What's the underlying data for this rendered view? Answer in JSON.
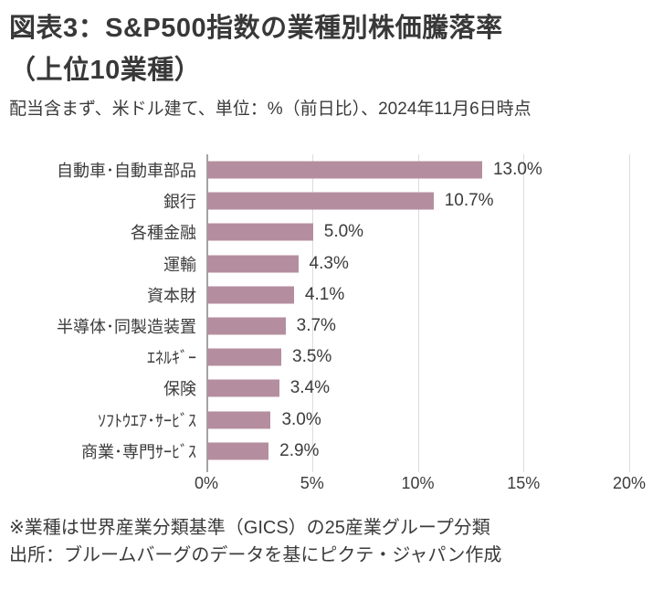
{
  "header": {
    "title_line1": "図表3：S&P500指数の業種別株価騰落率",
    "title_line2": "（上位10業種）",
    "subtitle": "配当含まず、米ドル建て、単位：%（前日比）、2024年11月6日時点"
  },
  "chart_data": {
    "type": "bar",
    "orientation": "horizontal",
    "title": "S&P500指数の業種別株価騰落率（上位10業種）",
    "categories": [
      "自動車･自動車部品",
      "銀行",
      "各種金融",
      "運輸",
      "資本財",
      "半導体･同製造装置",
      "ｴﾈﾙｷﾞｰ",
      "保険",
      "ｿﾌﾄｳｴｱ･ｻｰﾋﾞｽ",
      "商業･専門ｻｰﾋﾞｽ"
    ],
    "values": [
      13.0,
      10.7,
      5.0,
      4.3,
      4.1,
      3.7,
      3.5,
      3.4,
      3.0,
      2.9
    ],
    "value_labels": [
      "13.0%",
      "10.7%",
      "5.0%",
      "4.3%",
      "4.1%",
      "3.7%",
      "3.5%",
      "3.4%",
      "3.0%",
      "2.9%"
    ],
    "xlabel": "",
    "ylabel": "",
    "xlim": [
      0,
      20
    ],
    "x_ticks": [
      "0%",
      "5%",
      "10%",
      "15%",
      "20%"
    ],
    "x_tick_values": [
      0,
      5,
      10,
      15,
      20
    ],
    "grid": true,
    "legend": false,
    "bar_color": "#b48e9f",
    "gridline_color": "#dcdcdc",
    "axis_color": "#a3a3a3"
  },
  "footer": {
    "note": "※業種は世界産業分類基準（GICS）の25産業グループ分類",
    "source": "出所：ブルームバーグのデータを基にピクテ・ジャパン作成"
  }
}
